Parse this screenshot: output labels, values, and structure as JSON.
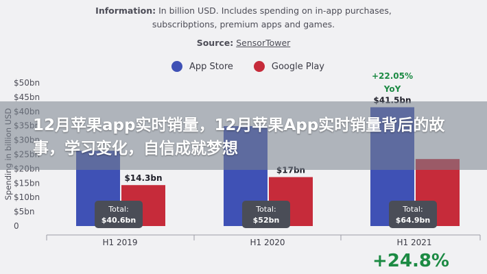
{
  "header": {
    "info_bold": "Information:",
    "info_text": " In billion USD. Includes spending on in-app purchases,",
    "info_line2": "subscribptions, premium apps and games.",
    "source_bold": "Source:",
    "source_link": "SensorTower"
  },
  "banner": {
    "text": "12月苹果app实时销量，12月苹果App实时销量背后的故事，学习变化，自信成就梦想"
  },
  "footer": {
    "growth": "+24.8%"
  },
  "colors": {
    "app_store": "#3f51b5",
    "google_play": "#c62b3a"
  },
  "chart_data": {
    "type": "bar",
    "categories": [
      "H1 2019",
      "H1 2020",
      "H1 2021"
    ],
    "series": [
      {
        "name": "App Store",
        "values": [
          26.3,
          34.9,
          41.5
        ]
      },
      {
        "name": "Google Play",
        "values": [
          14.3,
          17.1,
          23.4
        ]
      }
    ],
    "value_labels": {
      "Google Play": [
        "$14.3bn",
        "$17bn",
        ""
      ],
      "App Store": [
        "",
        "",
        "$41.5bn"
      ]
    },
    "totals": [
      "Total:\n$40.6bn",
      "Total:\n$52bn",
      "Total:\n$64.9bn"
    ],
    "annotations": [
      {
        "text": "+22.05%",
        "sub": "YoY",
        "category": "H1 2021"
      }
    ],
    "ylabel": "Spending in billion USD",
    "yticks": [
      "0",
      "$5bn",
      "$10bn",
      "$15bn",
      "$20bn",
      "$25bn",
      "$30bn",
      "$35bn",
      "$40bn",
      "$45bn",
      "$50bn"
    ],
    "ylim": [
      0,
      50
    ],
    "legend_position": "top-center",
    "grid": false
  }
}
